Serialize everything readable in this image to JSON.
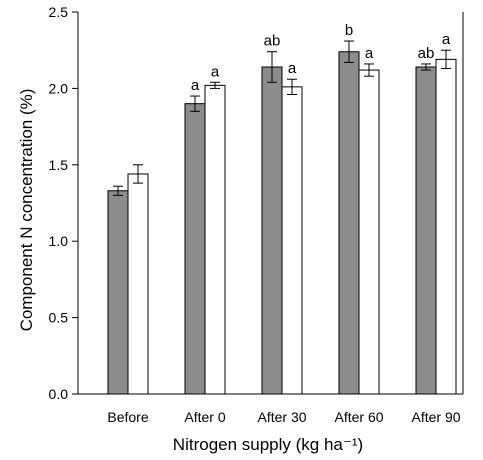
{
  "chart_data": {
    "type": "bar",
    "xlabel": "Nitrogen supply (kg ha⁻¹)",
    "ylabel": "Component N concentration (%)",
    "ylim": [
      0,
      2.5
    ],
    "yticks": [
      "0.0",
      "0.5",
      "1.0",
      "1.5",
      "2.0",
      "2.5"
    ],
    "categories": [
      "Before",
      "After 0",
      "After 30",
      "After 60",
      "After 90"
    ],
    "series": [
      {
        "color": "#8c8c8c",
        "values": [
          1.33,
          1.9,
          2.14,
          2.24,
          2.14
        ],
        "errors": [
          0.03,
          0.05,
          0.1,
          0.07,
          0.02
        ],
        "labels": [
          "",
          "a",
          "ab",
          "b",
          "ab"
        ]
      },
      {
        "color": "#ffffff",
        "values": [
          1.44,
          2.02,
          2.01,
          2.12,
          2.19
        ],
        "errors": [
          0.06,
          0.02,
          0.05,
          0.04,
          0.06
        ],
        "labels": [
          "",
          "a",
          "a",
          "a",
          "a"
        ]
      }
    ]
  }
}
